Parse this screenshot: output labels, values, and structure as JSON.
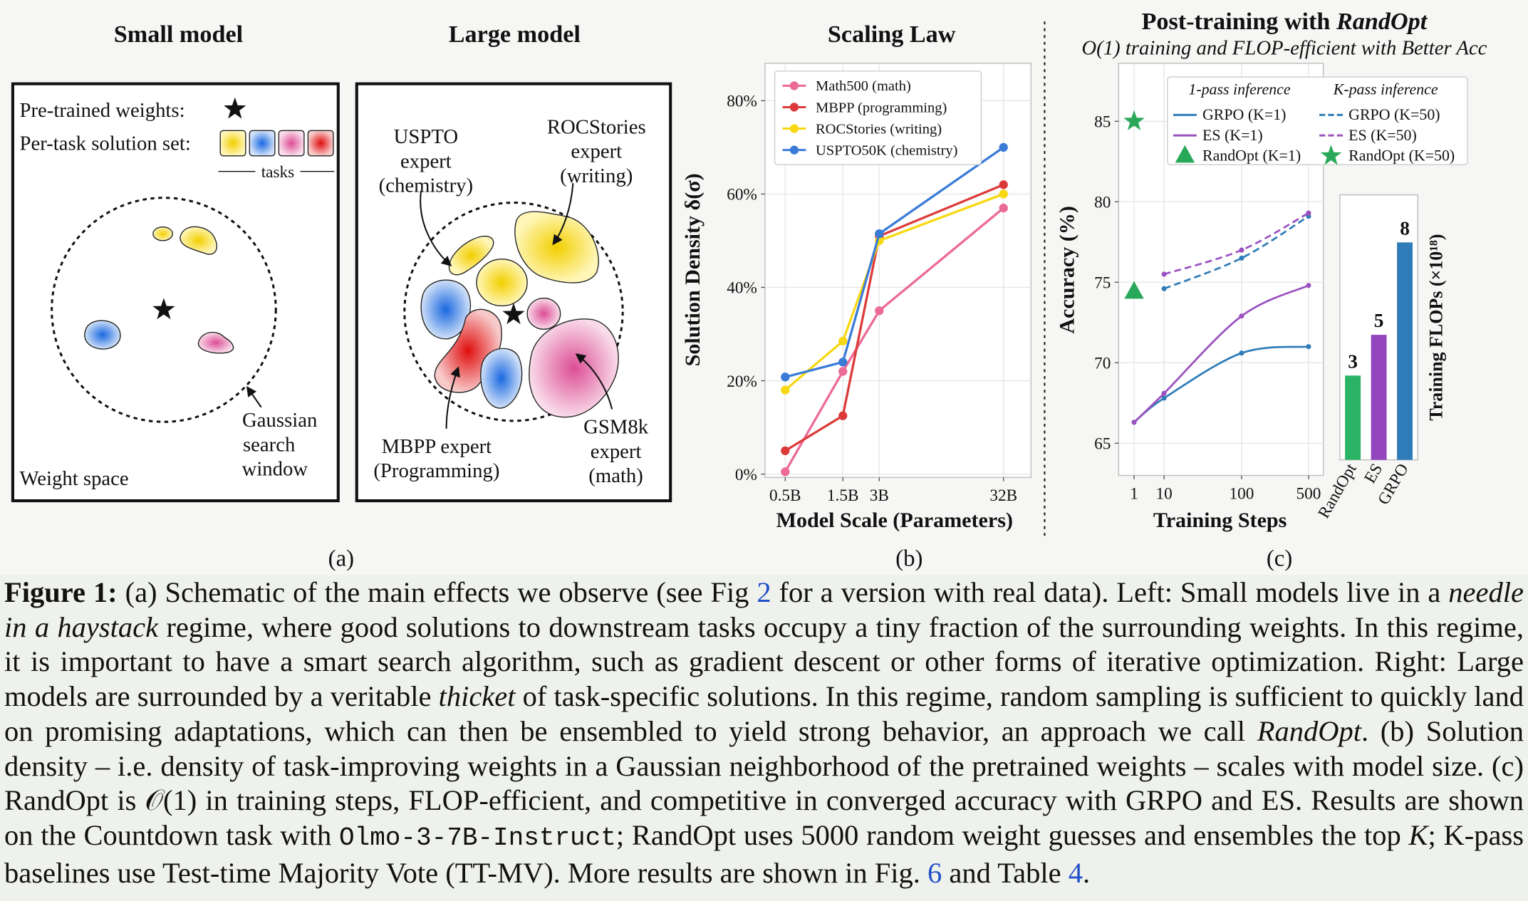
{
  "panel_a": {
    "small": {
      "title": "Small model",
      "pretrained": "Pre-trained weights:",
      "solution_set": "Per-task solution set:",
      "tasks": "tasks",
      "window": [
        "Gaussian",
        "search",
        "window"
      ],
      "space": "Weight space"
    },
    "large": {
      "title": "Large model",
      "experts": [
        [
          "USPTO",
          "expert",
          "(chemistry)"
        ],
        [
          "ROCStories",
          "expert",
          "(writing)"
        ],
        [
          "MBPP expert",
          "(Programming)"
        ],
        [
          "GSM8k",
          "expert",
          "(math)"
        ]
      ]
    },
    "label": "(a)"
  },
  "chart_data": [
    {
      "type": "line",
      "title": "Scaling Law",
      "panel_label": "(b)",
      "x_label": "Model Scale (Parameters)",
      "y_label": "Solution Density δ(σ)",
      "xscale": "log",
      "x": [
        0.5,
        1.5,
        3,
        32
      ],
      "xlim": [
        0.34,
        54
      ],
      "xticks": [
        {
          "value": 0.5,
          "label": "0.5B"
        },
        {
          "value": 1.5,
          "label": "1.5B"
        },
        {
          "value": 3,
          "label": "3B"
        },
        {
          "value": 32,
          "label": "32B"
        }
      ],
      "ylim": [
        -0.7,
        88
      ],
      "yticks": [
        {
          "value": 0,
          "label": "0%"
        },
        {
          "value": 20,
          "label": "20%"
        },
        {
          "value": 40,
          "label": "40%"
        },
        {
          "value": 60,
          "label": "60%"
        },
        {
          "value": 80,
          "label": "80%"
        }
      ],
      "grid": true,
      "legend": "upper left",
      "series": [
        {
          "name": "Math500 (math)",
          "color": "#ec6a97",
          "style": "solid",
          "values": [
            0.5,
            22,
            35,
            57
          ]
        },
        {
          "name": "MBPP (programming)",
          "color": "#dc3a3a",
          "style": "solid",
          "values": [
            5,
            12.5,
            51,
            62
          ]
        },
        {
          "name": "ROCStories (writing)",
          "color": "#f7d813",
          "style": "solid",
          "values": [
            18,
            28.5,
            50,
            60
          ]
        },
        {
          "name": "USPTO50K (chemistry)",
          "color": "#3b7bd8",
          "style": "solid",
          "values": [
            20.8,
            24,
            51.5,
            70
          ]
        }
      ]
    },
    {
      "type": "line",
      "title": "Post-training with",
      "title_emph": "RandOpt",
      "subtitle": "O(1) training and FLOP-efficient with Better Acc",
      "panel_label": "(c)",
      "x_label": "Training Steps",
      "y_label": "Accuracy (%)",
      "x": [
        1,
        10,
        100,
        500
      ],
      "xlim": [
        -1.7,
        706
      ],
      "xticks": [
        1,
        10,
        100,
        500
      ],
      "ylim": [
        63,
        88.6
      ],
      "yticks": [
        65,
        70,
        75,
        80,
        85
      ],
      "grid": true,
      "smooth": true,
      "legend": "upper right",
      "legend_titles": [
        "1-pass inference",
        "K-pass inference"
      ],
      "series": [
        {
          "name": "GRPO (K=1)",
          "color": "#2f7cb8",
          "style": "solid",
          "values": [
            66.3,
            67.8,
            70.6,
            71.0
          ]
        },
        {
          "name": "ES (K=1)",
          "color": "#9b50c0",
          "style": "solid",
          "values": [
            66.3,
            68.1,
            72.9,
            74.8
          ]
        },
        {
          "name": "RandOpt (K=1)",
          "color": "#2aa85a",
          "style": "triangle",
          "values": [
            74.4,
            null,
            null,
            null
          ]
        },
        {
          "name": "GRPO (K=50)",
          "color": "#2f7cb8",
          "style": "dashed",
          "values": [
            null,
            74.6,
            76.5,
            79.1
          ]
        },
        {
          "name": "ES (K=50)",
          "color": "#9b50c0",
          "style": "dashed",
          "values": [
            null,
            75.5,
            77.0,
            79.3
          ]
        },
        {
          "name": "RandOpt (K=50)",
          "color": "#2aa85a",
          "style": "star",
          "values": [
            85.0,
            null,
            null,
            null
          ]
        }
      ]
    },
    {
      "type": "bar",
      "y_label": "Training FLOPs (×10¹⁸)",
      "categories": [
        "RandOpt",
        "ES",
        "GRPO"
      ],
      "values": [
        3.1,
        4.6,
        8.0
      ],
      "value_labels": [
        "3",
        "5",
        "8"
      ],
      "colors": [
        "#2ab364",
        "#9346bd",
        "#2f7cb8"
      ],
      "ylim": [
        0,
        9.75
      ]
    }
  ],
  "caption": {
    "parts": [
      "Figure 1:",
      " (a) Schematic of the main effects we observe (see Fig ",
      "2",
      " for a version with real data). Left: Small models live in a ",
      "needle in a haystack",
      " regime, where good solutions to downstream tasks occupy a tiny fraction of the surrounding weights. In this regime, it is important to have a smart search algorithm, such as gradient descent or other forms of iterative optimization. Right: Large models are surrounded by a veritable ",
      "thicket",
      " of task-specific solutions. In this regime, random sampling is sufficient to quickly land on promising adaptations, which can then be ensembled to yield strong behavior, an approach we call ",
      "RandOpt",
      ". (b) Solution density – i.e. density of task-improving weights in a Gaussian neighborhood of the pretrained weights – scales with model size. (c) RandOpt is ",
      "𝒪(1)",
      " in training steps, FLOP-efficient, and competitive in converged accuracy with GRPO and ES. Results are shown on the Countdown task with ",
      "Olmo-3-7B-Instruct",
      "; RandOpt uses 5000 random weight guesses and ensembles the top ",
      "K",
      "; K-pass baselines use Test-time Majority Vote (TT-MV). More results are shown in Fig. ",
      "6",
      " and Table ",
      "4",
      "."
    ]
  }
}
